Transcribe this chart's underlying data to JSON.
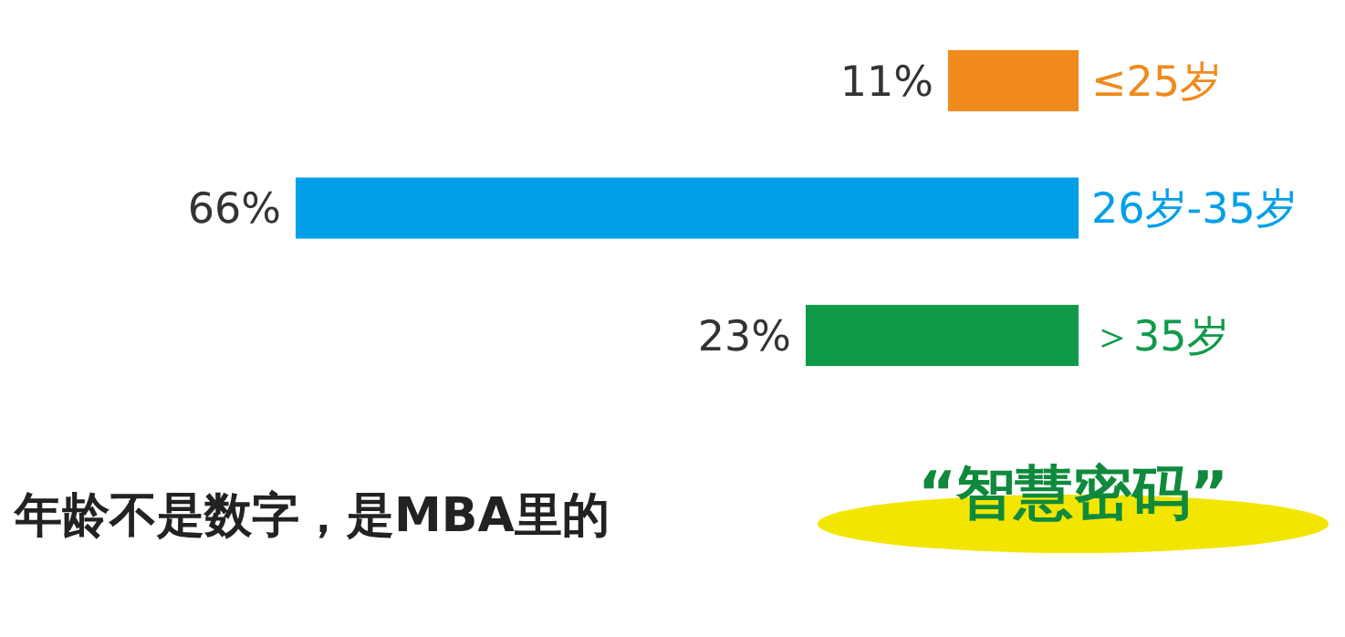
{
  "chart_data": {
    "type": "bar",
    "orientation": "horizontal",
    "title": "年龄不是数字，是MBA里的",
    "subtitle": "“智慧密码”",
    "categories": [
      "≤25岁",
      "26岁-35岁",
      "＞35岁"
    ],
    "values": [
      11,
      66,
      23
    ],
    "colors": [
      "#f08a1c",
      "#00a0e9",
      "#0f9a4a"
    ],
    "value_labels": [
      "11%",
      "66%",
      "23%"
    ]
  }
}
